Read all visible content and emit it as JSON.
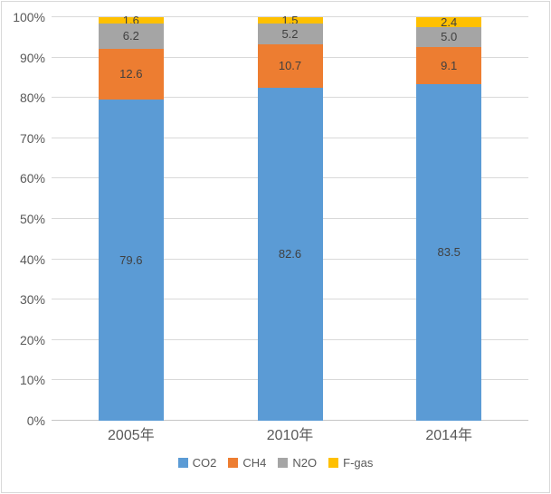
{
  "chart_data": {
    "type": "bar",
    "subtype": "stacked-100-percent-column",
    "title": "",
    "xlabel": "",
    "ylabel": "",
    "categories": [
      "2005年",
      "2010年",
      "2014年"
    ],
    "series": [
      {
        "name": "CO2",
        "color": "#5B9BD5",
        "values": [
          79.6,
          82.6,
          83.5
        ],
        "labels": [
          "79.6",
          "82.6",
          "83.5"
        ]
      },
      {
        "name": "CH4",
        "color": "#ED7D31",
        "values": [
          12.6,
          10.7,
          9.1
        ],
        "labels": [
          "12.6",
          "10.7",
          "9.1"
        ]
      },
      {
        "name": "N2O",
        "color": "#A5A5A5",
        "values": [
          6.2,
          5.2,
          5.0
        ],
        "labels": [
          "6.2",
          "5.2",
          "5.0"
        ]
      },
      {
        "name": "F-gas",
        "color": "#FFC000",
        "values": [
          1.6,
          1.5,
          2.4
        ],
        "labels": [
          "1.6",
          "1.5",
          "2.4"
        ]
      }
    ],
    "y_ticks": [
      "0%",
      "10%",
      "20%",
      "30%",
      "40%",
      "50%",
      "60%",
      "70%",
      "80%",
      "90%",
      "100%"
    ],
    "ylim": [
      0,
      100
    ],
    "grid": true,
    "legend_position": "bottom"
  },
  "colors": {
    "background": "#FFFFFF",
    "border": "#D9D9D9",
    "gridline": "#D9D9D9",
    "axis_line": "#C6C6C6",
    "tick_text": "#595959",
    "data_label": "#404040"
  }
}
